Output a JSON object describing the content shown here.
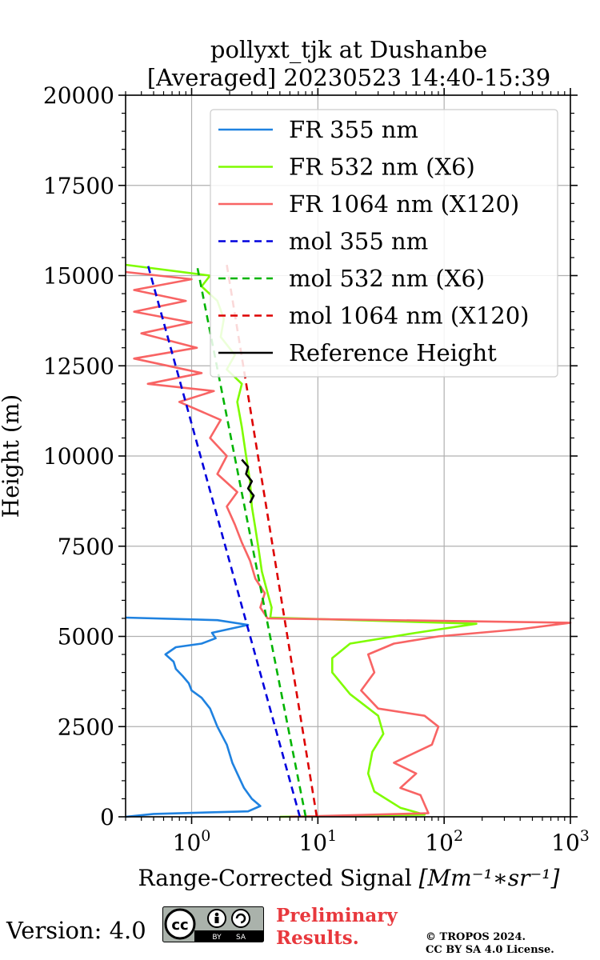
{
  "chart_data": {
    "type": "line",
    "title_line1": "pollyxt_tjk at Dushanbe",
    "title_line2": "[Averaged] 20230523 14:40-15:39",
    "xlabel": "Range-Corrected Signal",
    "xlabel_units": "[Mm⁻¹∗sr⁻¹]",
    "ylabel": "Height (m)",
    "x_scale": "log",
    "xlim": [
      0.3,
      1000
    ],
    "ylim": [
      0,
      20000
    ],
    "x_ticks": [
      {
        "value": 1,
        "label_base": "10",
        "label_exp": "0"
      },
      {
        "value": 10,
        "label_base": "10",
        "label_exp": "1"
      },
      {
        "value": 100,
        "label_base": "10",
        "label_exp": "2"
      },
      {
        "value": 1000,
        "label_base": "10",
        "label_exp": "3"
      }
    ],
    "y_ticks": [
      {
        "value": 0,
        "label": "0"
      },
      {
        "value": 2500,
        "label": "2500"
      },
      {
        "value": 5000,
        "label": "5000"
      },
      {
        "value": 7500,
        "label": "7500"
      },
      {
        "value": 10000,
        "label": "10000"
      },
      {
        "value": 12500,
        "label": "12500"
      },
      {
        "value": 15000,
        "label": "15000"
      },
      {
        "value": 17500,
        "label": "17500"
      },
      {
        "value": 20000,
        "label": "20000"
      }
    ],
    "grid": true,
    "legend_position": "top-right",
    "series": [
      {
        "name": "FR 355 nm",
        "color": "#1f82e0",
        "dash": "solid",
        "points": [
          [
            0.3,
            0
          ],
          [
            0.5,
            80
          ],
          [
            2.8,
            150
          ],
          [
            3.5,
            300
          ],
          [
            3.0,
            500
          ],
          [
            2.6,
            800
          ],
          [
            2.3,
            1200
          ],
          [
            2.1,
            1500
          ],
          [
            1.9,
            2000
          ],
          [
            1.6,
            2500
          ],
          [
            1.4,
            3000
          ],
          [
            1.2,
            3300
          ],
          [
            1.0,
            3500
          ],
          [
            0.95,
            3700
          ],
          [
            0.85,
            3900
          ],
          [
            0.75,
            4100
          ],
          [
            0.72,
            4300
          ],
          [
            0.62,
            4500
          ],
          [
            0.75,
            4700
          ],
          [
            1.2,
            4800
          ],
          [
            1.55,
            4950
          ],
          [
            1.45,
            5100
          ],
          [
            2.8,
            5320
          ],
          [
            1.6,
            5450
          ],
          [
            0.3,
            5520
          ]
        ]
      },
      {
        "name": "FR 532 nm (X6)",
        "color": "#7ffc00",
        "dash": "solid",
        "points": [
          [
            5,
            0
          ],
          [
            70,
            60
          ],
          [
            45,
            250
          ],
          [
            28,
            700
          ],
          [
            25,
            1200
          ],
          [
            27,
            1800
          ],
          [
            33,
            2300
          ],
          [
            30,
            2800
          ],
          [
            18,
            3400
          ],
          [
            13,
            4000
          ],
          [
            13,
            4400
          ],
          [
            18,
            4800
          ],
          [
            60,
            5100
          ],
          [
            180,
            5350
          ],
          [
            4.2,
            5520
          ],
          [
            4.3,
            5800
          ],
          [
            4.0,
            6200
          ],
          [
            3.6,
            6800
          ],
          [
            3.4,
            7400
          ],
          [
            3.2,
            8000
          ],
          [
            3.0,
            8600
          ],
          [
            2.9,
            9300
          ],
          [
            2.7,
            10000
          ],
          [
            2.5,
            10800
          ],
          [
            2.3,
            11500
          ],
          [
            2.5,
            12000
          ],
          [
            1.9,
            12400
          ],
          [
            2.2,
            12800
          ],
          [
            1.7,
            13300
          ],
          [
            1.8,
            13800
          ],
          [
            1.6,
            14300
          ],
          [
            1.2,
            14700
          ],
          [
            1.4,
            15000
          ],
          [
            0.3,
            15300
          ]
        ]
      },
      {
        "name": "FR 1064 nm (X120)",
        "color": "#f86464",
        "dash": "solid",
        "points": [
          [
            6,
            0
          ],
          [
            75,
            100
          ],
          [
            65,
            600
          ],
          [
            45,
            800
          ],
          [
            60,
            1200
          ],
          [
            40,
            1500
          ],
          [
            80,
            2000
          ],
          [
            90,
            2500
          ],
          [
            70,
            2800
          ],
          [
            30,
            3000
          ],
          [
            22,
            3500
          ],
          [
            28,
            4000
          ],
          [
            25,
            4500
          ],
          [
            40,
            4800
          ],
          [
            90,
            5000
          ],
          [
            400,
            5200
          ],
          [
            1000,
            5380
          ],
          [
            4.0,
            5500
          ],
          [
            3.5,
            5800
          ],
          [
            3.8,
            6200
          ],
          [
            3.2,
            6600
          ],
          [
            2.9,
            7100
          ],
          [
            2.5,
            7600
          ],
          [
            2.2,
            8100
          ],
          [
            1.9,
            8600
          ],
          [
            2.3,
            9000
          ],
          [
            1.6,
            9500
          ],
          [
            1.9,
            10000
          ],
          [
            1.4,
            10500
          ],
          [
            1.7,
            11000
          ],
          [
            0.8,
            11500
          ],
          [
            1.5,
            11800
          ],
          [
            0.45,
            12000
          ],
          [
            1.2,
            12300
          ],
          [
            0.35,
            12700
          ],
          [
            1.1,
            13000
          ],
          [
            0.4,
            13400
          ],
          [
            1.0,
            13700
          ],
          [
            0.35,
            14000
          ],
          [
            0.9,
            14300
          ],
          [
            0.35,
            14600
          ],
          [
            1.0,
            14900
          ],
          [
            0.3,
            15100
          ]
        ]
      },
      {
        "name": "mol 355 nm",
        "color": "#0000dd",
        "dash": "dashed",
        "points": [
          [
            7.2,
            0
          ],
          [
            0.45,
            15300
          ]
        ]
      },
      {
        "name": "mol 532 nm (X6)",
        "color": "#00b400",
        "dash": "dashed",
        "points": [
          [
            8.0,
            0
          ],
          [
            1.1,
            15300
          ]
        ]
      },
      {
        "name": "mol 1064 nm (X120)",
        "color": "#dd0000",
        "dash": "dashed",
        "points": [
          [
            9.8,
            0
          ],
          [
            1.9,
            15300
          ]
        ]
      },
      {
        "name": "Reference Height",
        "color": "#000000",
        "dash": "solid",
        "points": [
          [
            2.5,
            9900
          ],
          [
            2.8,
            9700
          ],
          [
            2.7,
            9500
          ],
          [
            3.0,
            9300
          ],
          [
            2.8,
            9100
          ],
          [
            3.1,
            8900
          ],
          [
            2.9,
            8700
          ]
        ]
      }
    ]
  },
  "footer": {
    "version": "Version: 4.0",
    "preliminary_line1": "Preliminary",
    "preliminary_line2": "Results.",
    "copyright_line1": "© TROPOS 2024.",
    "copyright_line2": "CC BY SA 4.0 License.",
    "badge_by": "BY",
    "badge_sa": "SA"
  }
}
